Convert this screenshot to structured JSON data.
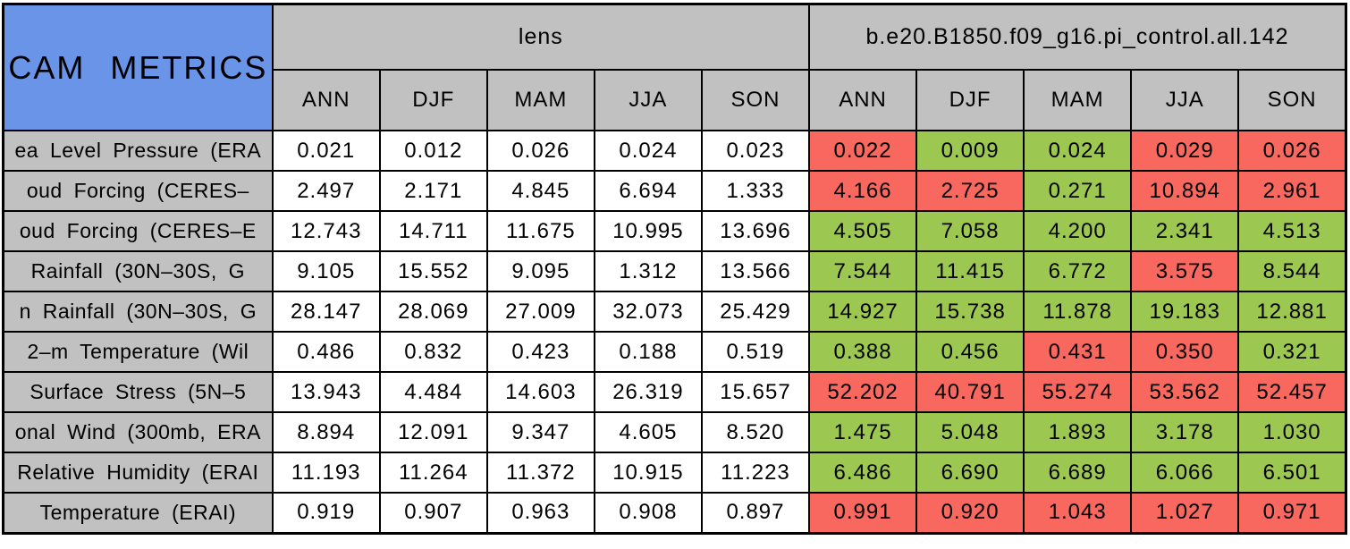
{
  "table": {
    "title": "CAM METRICS",
    "column_groups": [
      {
        "label": "lens"
      },
      {
        "label": "b.e20.B1850.f09_g16.pi_control.all.142"
      }
    ],
    "seasons": [
      "ANN",
      "DJF",
      "MAM",
      "JJA",
      "SON"
    ],
    "rows": [
      {
        "label": "ea Level Pressure (ERA",
        "lens": [
          "0.021",
          "0.012",
          "0.026",
          "0.024",
          "0.023"
        ],
        "case2": [
          "0.022",
          "0.009",
          "0.024",
          "0.029",
          "0.026"
        ],
        "case2_status": [
          "red",
          "green",
          "green",
          "red",
          "red"
        ]
      },
      {
        "label": "oud Forcing (CERES–",
        "lens": [
          "2.497",
          "2.171",
          "4.845",
          "6.694",
          "1.333"
        ],
        "case2": [
          "4.166",
          "2.725",
          "0.271",
          "10.894",
          "2.961"
        ],
        "case2_status": [
          "red",
          "red",
          "green",
          "red",
          "red"
        ]
      },
      {
        "label": "oud Forcing (CERES–E",
        "lens": [
          "12.743",
          "14.711",
          "11.675",
          "10.995",
          "13.696"
        ],
        "case2": [
          "4.505",
          "7.058",
          "4.200",
          "2.341",
          "4.513"
        ],
        "case2_status": [
          "green",
          "green",
          "green",
          "green",
          "green"
        ]
      },
      {
        "label": "Rainfall (30N–30S, G",
        "lens": [
          "9.105",
          "15.552",
          "9.095",
          "1.312",
          "13.566"
        ],
        "case2": [
          "7.544",
          "11.415",
          "6.772",
          "3.575",
          "8.544"
        ],
        "case2_status": [
          "green",
          "green",
          "green",
          "red",
          "green"
        ]
      },
      {
        "label": "n Rainfall (30N–30S, G",
        "lens": [
          "28.147",
          "28.069",
          "27.009",
          "32.073",
          "25.429"
        ],
        "case2": [
          "14.927",
          "15.738",
          "11.878",
          "19.183",
          "12.881"
        ],
        "case2_status": [
          "green",
          "green",
          "green",
          "green",
          "green"
        ]
      },
      {
        "label": "2–m Temperature (Wil",
        "lens": [
          "0.486",
          "0.832",
          "0.423",
          "0.188",
          "0.519"
        ],
        "case2": [
          "0.388",
          "0.456",
          "0.431",
          "0.350",
          "0.321"
        ],
        "case2_status": [
          "green",
          "green",
          "red",
          "red",
          "green"
        ]
      },
      {
        "label": "Surface Stress (5N–5",
        "lens": [
          "13.943",
          "4.484",
          "14.603",
          "26.319",
          "15.657"
        ],
        "case2": [
          "52.202",
          "40.791",
          "55.274",
          "53.562",
          "52.457"
        ],
        "case2_status": [
          "red",
          "red",
          "red",
          "red",
          "red"
        ]
      },
      {
        "label": "onal Wind (300mb, ERA",
        "lens": [
          "8.894",
          "12.091",
          "9.347",
          "4.605",
          "8.520"
        ],
        "case2": [
          "1.475",
          "5.048",
          "1.893",
          "3.178",
          "1.030"
        ],
        "case2_status": [
          "green",
          "green",
          "green",
          "green",
          "green"
        ]
      },
      {
        "label": "Relative Humidity (ERAI",
        "lens": [
          "11.193",
          "11.264",
          "11.372",
          "10.915",
          "11.223"
        ],
        "case2": [
          "6.486",
          "6.690",
          "6.689",
          "6.066",
          "6.501"
        ],
        "case2_status": [
          "green",
          "green",
          "green",
          "green",
          "green"
        ]
      },
      {
        "label": "Temperature (ERAI)",
        "lens": [
          "0.919",
          "0.907",
          "0.963",
          "0.908",
          "0.897"
        ],
        "case2": [
          "0.991",
          "0.920",
          "1.043",
          "1.027",
          "0.971"
        ],
        "case2_status": [
          "red",
          "red",
          "red",
          "red",
          "red"
        ]
      }
    ]
  },
  "colors": {
    "title_blue": "#6994E8",
    "header_gray": "#C1C1C1",
    "cell_green": "#9CC751",
    "cell_red": "#F8685E",
    "cell_white": "#FFFFFF",
    "border_black": "#000000"
  },
  "chart_data": {
    "type": "table",
    "title": "CAM METRICS",
    "column_groups": [
      "lens",
      "b.e20.B1850.f09_g16.pi_control.all.142"
    ],
    "columns": [
      "ANN",
      "DJF",
      "MAM",
      "JJA",
      "SON"
    ],
    "row_labels": [
      "ea Level Pressure (ERA",
      "oud Forcing (CERES–",
      "oud Forcing (CERES–E",
      "Rainfall (30N–30S, G",
      "n Rainfall (30N–30S, G",
      "2–m Temperature (Wil",
      "Surface Stress (5N–5",
      "onal Wind (300mb, ERA",
      "Relative Humidity (ERAI",
      "Temperature (ERAI)"
    ],
    "series": [
      {
        "name": "lens",
        "values": [
          [
            0.021,
            0.012,
            0.026,
            0.024,
            0.023
          ],
          [
            2.497,
            2.171,
            4.845,
            6.694,
            1.333
          ],
          [
            12.743,
            14.711,
            11.675,
            10.995,
            13.696
          ],
          [
            9.105,
            15.552,
            9.095,
            1.312,
            13.566
          ],
          [
            28.147,
            28.069,
            27.009,
            32.073,
            25.429
          ],
          [
            0.486,
            0.832,
            0.423,
            0.188,
            0.519
          ],
          [
            13.943,
            4.484,
            14.603,
            26.319,
            15.657
          ],
          [
            8.894,
            12.091,
            9.347,
            4.605,
            8.52
          ],
          [
            11.193,
            11.264,
            11.372,
            10.915,
            11.223
          ],
          [
            0.919,
            0.907,
            0.963,
            0.908,
            0.897
          ]
        ],
        "cell_background": "white"
      },
      {
        "name": "b.e20.B1850.f09_g16.pi_control.all.142",
        "values": [
          [
            0.022,
            0.009,
            0.024,
            0.029,
            0.026
          ],
          [
            4.166,
            2.725,
            0.271,
            10.894,
            2.961
          ],
          [
            4.505,
            7.058,
            4.2,
            2.341,
            4.513
          ],
          [
            7.544,
            11.415,
            6.772,
            3.575,
            8.544
          ],
          [
            14.927,
            15.738,
            11.878,
            19.183,
            12.881
          ],
          [
            0.388,
            0.456,
            0.431,
            0.35,
            0.321
          ],
          [
            52.202,
            40.791,
            55.274,
            53.562,
            52.457
          ],
          [
            1.475,
            5.048,
            1.893,
            3.178,
            1.03
          ],
          [
            6.486,
            6.69,
            6.689,
            6.066,
            6.501
          ],
          [
            0.991,
            0.92,
            1.043,
            1.027,
            0.971
          ]
        ],
        "cell_colors": [
          [
            "red",
            "green",
            "green",
            "red",
            "red"
          ],
          [
            "red",
            "red",
            "green",
            "red",
            "red"
          ],
          [
            "green",
            "green",
            "green",
            "green",
            "green"
          ],
          [
            "green",
            "green",
            "green",
            "red",
            "green"
          ],
          [
            "green",
            "green",
            "green",
            "green",
            "green"
          ],
          [
            "green",
            "green",
            "red",
            "red",
            "green"
          ],
          [
            "red",
            "red",
            "red",
            "red",
            "red"
          ],
          [
            "green",
            "green",
            "green",
            "green",
            "green"
          ],
          [
            "green",
            "green",
            "green",
            "green",
            "green"
          ],
          [
            "red",
            "red",
            "red",
            "red",
            "red"
          ]
        ]
      }
    ],
    "layout": {
      "grid": "all-cell-borders",
      "legend": "none"
    }
  }
}
